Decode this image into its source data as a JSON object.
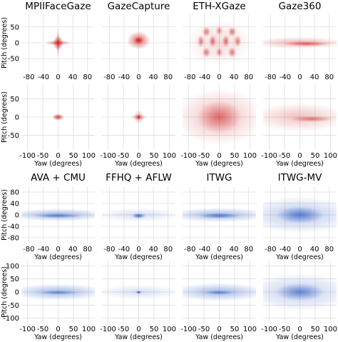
{
  "chart_data": {
    "type": "heatmap",
    "xlabel": "Yaw (degrees)",
    "ylabel": "Pitch (degrees)",
    "grid": true,
    "colors": {
      "red": "#cc1f1f",
      "blue": "#1f4fbf"
    },
    "top_section": {
      "x_ticks_row1": [
        "-80",
        "-40",
        "0",
        "40",
        "80"
      ],
      "x_ticks_row2": [
        "-100",
        "-50",
        "0",
        "50",
        "100"
      ],
      "y_ticks_row1": [
        "50",
        "0",
        "-50"
      ],
      "y_ticks_row2": [
        "50",
        "0",
        "-50"
      ],
      "xlim_row1": [
        -100,
        100
      ],
      "ylim_row1": [
        -90,
        90
      ],
      "xlim_row2": [
        -120,
        120
      ],
      "ylim_row2": [
        -90,
        90
      ]
    },
    "bottom_section": {
      "x_ticks_row1": [
        "-80",
        "-40",
        "0",
        "40",
        "80"
      ],
      "x_ticks_row2": [
        "-100",
        "-50",
        "0",
        "50",
        "100"
      ],
      "y_ticks_row1": [
        "80",
        "40",
        "0",
        "-40",
        "-80"
      ],
      "y_ticks_row2": [
        "100",
        "50",
        "0",
        "-50",
        "-100"
      ],
      "xlim_row1": [
        -100,
        100
      ],
      "ylim_row1": [
        -100,
        100
      ],
      "xlim_row2": [
        -120,
        120
      ],
      "ylim_row2": [
        -120,
        120
      ]
    },
    "datasets": [
      {
        "title": "MPIIFaceGaze",
        "color": "red",
        "row": "top1",
        "blobs": [
          {
            "x": 0,
            "y": 0,
            "sx": 9,
            "sy": 14,
            "a": 0.85
          },
          {
            "x": 0,
            "y": 0,
            "sx": 22,
            "sy": 5,
            "a": 0.6
          },
          {
            "x": 0,
            "y": 0,
            "sx": 3,
            "sy": 28,
            "a": 0.5
          }
        ]
      },
      {
        "title": "GazeCapture",
        "color": "red",
        "row": "top1",
        "blobs": [
          {
            "x": 0,
            "y": 8,
            "sx": 20,
            "sy": 18,
            "a": 0.7
          },
          {
            "x": 0,
            "y": 8,
            "sx": 8,
            "sy": 7,
            "a": 0.9
          }
        ]
      },
      {
        "title": "ETH-XGaze",
        "color": "red",
        "row": "top1",
        "blobs": [
          {
            "x": -35,
            "y": 35,
            "sx": 7,
            "sy": 10,
            "a": 0.6
          },
          {
            "x": 0,
            "y": 38,
            "sx": 6,
            "sy": 9,
            "a": 0.55
          },
          {
            "x": 35,
            "y": 35,
            "sx": 7,
            "sy": 10,
            "a": 0.6
          },
          {
            "x": -50,
            "y": 5,
            "sx": 6,
            "sy": 12,
            "a": 0.6
          },
          {
            "x": -18,
            "y": 5,
            "sx": 6,
            "sy": 12,
            "a": 0.65
          },
          {
            "x": 18,
            "y": 5,
            "sx": 6,
            "sy": 12,
            "a": 0.65
          },
          {
            "x": 50,
            "y": 5,
            "sx": 6,
            "sy": 12,
            "a": 0.6
          },
          {
            "x": -35,
            "y": -30,
            "sx": 7,
            "sy": 10,
            "a": 0.6
          },
          {
            "x": 0,
            "y": -30,
            "sx": 6,
            "sy": 9,
            "a": 0.55
          },
          {
            "x": 35,
            "y": -30,
            "sx": 7,
            "sy": 10,
            "a": 0.6
          },
          {
            "x": 0,
            "y": 0,
            "sx": 55,
            "sy": 45,
            "a": 0.18
          }
        ]
      },
      {
        "title": "Gaze360",
        "color": "red",
        "row": "top1",
        "blobs": [
          {
            "x": 0,
            "y": 0,
            "sx": 80,
            "sy": 12,
            "a": 0.35
          },
          {
            "x": 20,
            "y": -3,
            "sx": 40,
            "sy": 5,
            "a": 0.6
          }
        ]
      },
      {
        "title": "",
        "color": "red",
        "row": "top2",
        "blobs": [
          {
            "x": 0,
            "y": 0,
            "sx": 12,
            "sy": 6,
            "a": 0.85
          }
        ]
      },
      {
        "title": "",
        "color": "red",
        "row": "top2",
        "blobs": [
          {
            "x": 0,
            "y": 0,
            "sx": 10,
            "sy": 12,
            "a": 0.4
          },
          {
            "x": 0,
            "y": 0,
            "sx": 16,
            "sy": 5,
            "a": 0.5
          },
          {
            "x": 0,
            "y": 0,
            "sx": 4,
            "sy": 4,
            "a": 0.9
          }
        ]
      },
      {
        "title": "",
        "color": "red",
        "row": "top2",
        "blobs": [
          {
            "x": 0,
            "y": 0,
            "sx": 90,
            "sy": 48,
            "a": 0.32
          },
          {
            "x": 0,
            "y": 0,
            "sx": 45,
            "sy": 28,
            "a": 0.5
          }
        ]
      },
      {
        "title": "",
        "color": "red",
        "row": "top2",
        "blobs": [
          {
            "x": 0,
            "y": 0,
            "sx": 100,
            "sy": 25,
            "a": 0.28
          },
          {
            "x": 40,
            "y": -5,
            "sx": 45,
            "sy": 5,
            "a": 0.55
          }
        ]
      },
      {
        "title": "AVA + CMU",
        "color": "blue",
        "row": "bot1",
        "blobs": [
          {
            "x": 0,
            "y": 0,
            "sx": 85,
            "sy": 14,
            "a": 0.45
          },
          {
            "x": 0,
            "y": -3,
            "sx": 40,
            "sy": 5,
            "a": 0.55
          }
        ]
      },
      {
        "title": "FFHQ + AFLW",
        "color": "blue",
        "row": "bot1",
        "blobs": [
          {
            "x": 0,
            "y": 0,
            "sx": 75,
            "sy": 15,
            "a": 0.2
          },
          {
            "x": 0,
            "y": -3,
            "sx": 12,
            "sy": 6,
            "a": 0.8
          }
        ]
      },
      {
        "title": "ITWG",
        "color": "blue",
        "row": "bot1",
        "blobs": [
          {
            "x": 0,
            "y": 0,
            "sx": 88,
            "sy": 16,
            "a": 0.42
          },
          {
            "x": 0,
            "y": -3,
            "sx": 35,
            "sy": 6,
            "a": 0.6
          }
        ]
      },
      {
        "title": "ITWG-MV",
        "color": "blue",
        "row": "bot1",
        "blobs": [
          {
            "x": 0,
            "y": 0,
            "sx": 95,
            "sy": 40,
            "a": 0.35
          },
          {
            "x": 0,
            "y": 0,
            "sx": 40,
            "sy": 18,
            "a": 0.6
          }
        ]
      },
      {
        "title": "",
        "color": "blue",
        "row": "bot2",
        "blobs": [
          {
            "x": 0,
            "y": 0,
            "sx": 100,
            "sy": 20,
            "a": 0.42
          },
          {
            "x": 0,
            "y": -2,
            "sx": 40,
            "sy": 5,
            "a": 0.5
          }
        ]
      },
      {
        "title": "",
        "color": "blue",
        "row": "bot2",
        "blobs": [
          {
            "x": 0,
            "y": 0,
            "sx": 90,
            "sy": 18,
            "a": 0.18
          },
          {
            "x": 0,
            "y": -1,
            "sx": 6,
            "sy": 4,
            "a": 0.95
          }
        ]
      },
      {
        "title": "",
        "color": "blue",
        "row": "bot2",
        "blobs": [
          {
            "x": 0,
            "y": 0,
            "sx": 100,
            "sy": 22,
            "a": 0.42
          },
          {
            "x": 0,
            "y": -2,
            "sx": 30,
            "sy": 5,
            "a": 0.55
          }
        ]
      },
      {
        "title": "",
        "color": "blue",
        "row": "bot2",
        "blobs": [
          {
            "x": 0,
            "y": 0,
            "sx": 110,
            "sy": 45,
            "a": 0.3
          },
          {
            "x": 0,
            "y": 0,
            "sx": 50,
            "sy": 20,
            "a": 0.55
          }
        ]
      }
    ]
  }
}
